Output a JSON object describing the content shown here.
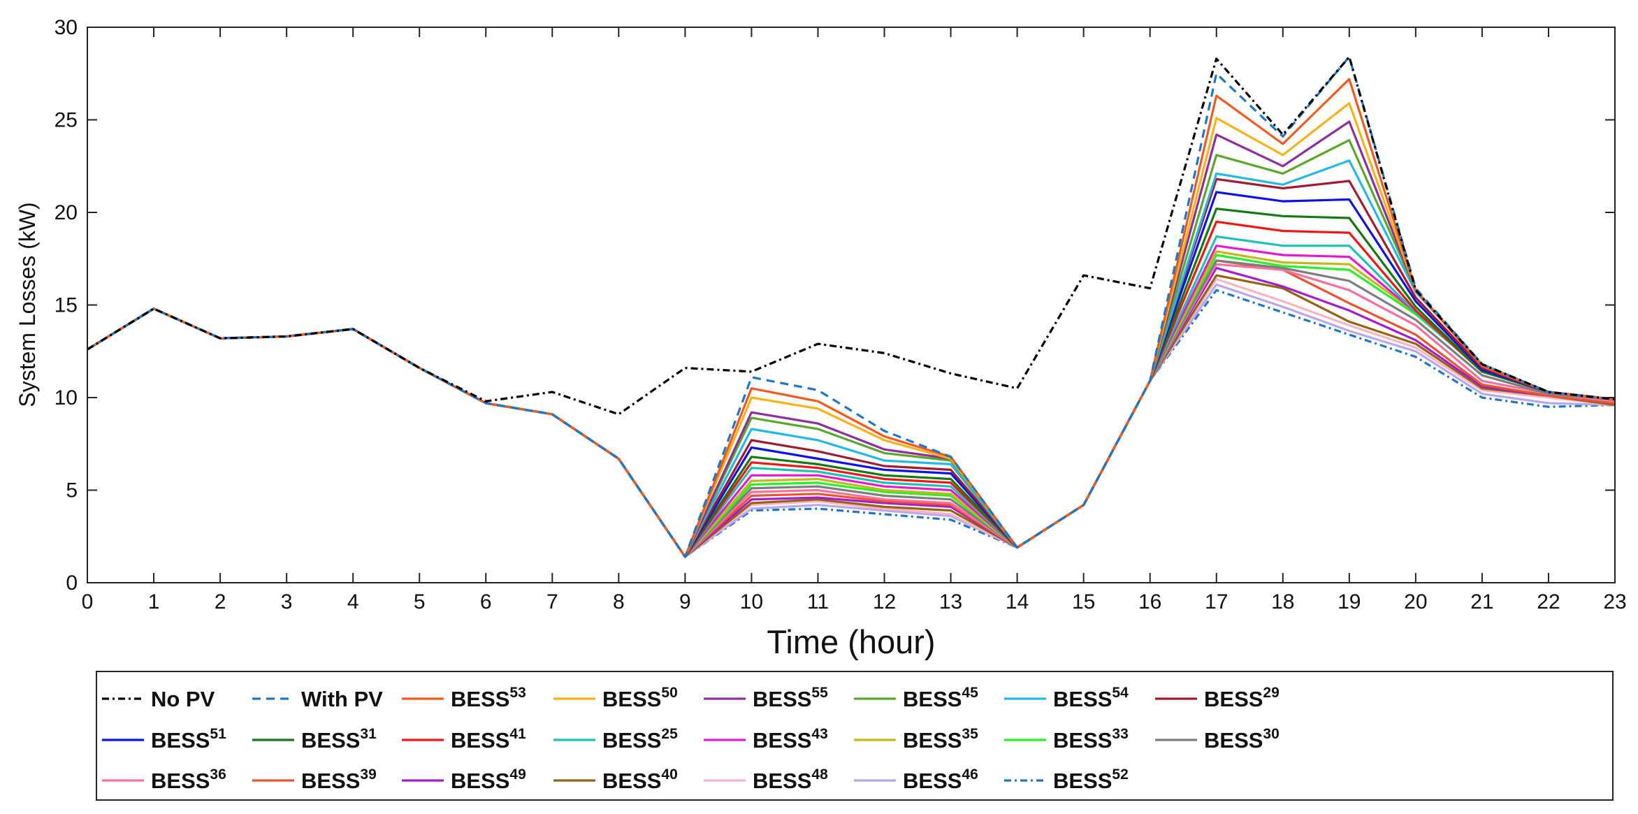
{
  "chart_data": {
    "type": "line",
    "xlabel": "Time (hour)",
    "ylabel": "System Losses (kW)",
    "xlim": [
      0,
      23
    ],
    "ylim": [
      0,
      30
    ],
    "x_ticks": [
      0,
      1,
      2,
      3,
      4,
      5,
      6,
      7,
      8,
      9,
      10,
      11,
      12,
      13,
      14,
      15,
      16,
      17,
      18,
      19,
      20,
      21,
      22,
      23
    ],
    "y_ticks": [
      0,
      5,
      10,
      15,
      20,
      25,
      30
    ],
    "grid": false,
    "legend_position": "bottom",
    "x": [
      0,
      1,
      2,
      3,
      4,
      5,
      6,
      7,
      8,
      9,
      10,
      11,
      12,
      13,
      14,
      15,
      16,
      17,
      18,
      19,
      20,
      21,
      22,
      23
    ],
    "series": [
      {
        "name": "No PV",
        "label_base": "No PV",
        "label_sup": "",
        "color": "#000000",
        "style": "dashdot",
        "values": [
          12.6,
          14.8,
          13.2,
          13.3,
          13.7,
          11.6,
          9.8,
          10.3,
          9.1,
          11.6,
          11.4,
          12.9,
          12.4,
          11.3,
          10.5,
          16.6,
          15.9,
          28.3,
          24.2,
          28.4,
          15.8,
          11.8,
          10.3,
          9.9
        ]
      },
      {
        "name": "With PV",
        "label_base": "With PV",
        "label_sup": "",
        "color": "#1f77c8",
        "style": "dashed",
        "values": [
          12.6,
          14.8,
          13.2,
          13.3,
          13.7,
          11.6,
          9.7,
          9.1,
          6.7,
          1.4,
          11.1,
          10.4,
          8.2,
          6.8,
          1.9,
          4.2,
          10.9,
          27.5,
          24.1,
          28.4,
          15.9,
          11.8,
          10.3,
          9.9
        ]
      },
      {
        "name": "BESS53",
        "label_base": "BESS",
        "label_sup": "53",
        "color": "#f05a1e",
        "style": "solid",
        "values": [
          12.6,
          14.8,
          13.2,
          13.3,
          13.7,
          11.6,
          9.7,
          9.1,
          6.7,
          1.4,
          10.5,
          9.8,
          7.9,
          6.8,
          1.9,
          4.2,
          10.9,
          26.3,
          23.7,
          27.2,
          15.8,
          11.7,
          10.3,
          9.9
        ]
      },
      {
        "name": "BESS50",
        "label_base": "BESS",
        "label_sup": "50",
        "color": "#f7b21a",
        "style": "solid",
        "values": [
          12.6,
          14.8,
          13.2,
          13.3,
          13.7,
          11.6,
          9.7,
          9.1,
          6.7,
          1.4,
          10.0,
          9.4,
          7.7,
          6.7,
          1.9,
          4.2,
          10.9,
          25.1,
          23.1,
          25.9,
          15.8,
          11.7,
          10.3,
          9.9
        ]
      },
      {
        "name": "BESS55",
        "label_base": "BESS",
        "label_sup": "55",
        "color": "#8e2e9e",
        "style": "solid",
        "values": [
          12.6,
          14.8,
          13.2,
          13.3,
          13.7,
          11.6,
          9.7,
          9.1,
          6.7,
          1.4,
          9.2,
          8.6,
          7.2,
          6.7,
          1.9,
          4.2,
          10.9,
          24.2,
          22.5,
          24.9,
          15.8,
          11.7,
          10.3,
          9.9
        ]
      },
      {
        "name": "BESS45",
        "label_base": "BESS",
        "label_sup": "45",
        "color": "#5aa82a",
        "style": "solid",
        "values": [
          12.6,
          14.8,
          13.2,
          13.3,
          13.7,
          11.6,
          9.7,
          9.1,
          6.7,
          1.4,
          8.9,
          8.3,
          7.0,
          6.6,
          1.9,
          4.2,
          10.9,
          23.1,
          22.1,
          23.9,
          15.8,
          11.7,
          10.3,
          9.9
        ]
      },
      {
        "name": "BESS54",
        "label_base": "BESS",
        "label_sup": "54",
        "color": "#22b8ea",
        "style": "solid",
        "values": [
          12.6,
          14.8,
          13.2,
          13.3,
          13.7,
          11.6,
          9.7,
          9.1,
          6.7,
          1.4,
          8.3,
          7.7,
          6.6,
          6.4,
          1.9,
          4.2,
          10.9,
          22.1,
          21.5,
          22.8,
          15.7,
          11.8,
          10.3,
          9.9
        ]
      },
      {
        "name": "BESS29",
        "label_base": "BESS",
        "label_sup": "29",
        "color": "#a31a2e",
        "style": "solid",
        "values": [
          12.6,
          14.8,
          13.2,
          13.3,
          13.7,
          11.6,
          9.7,
          9.1,
          6.7,
          1.4,
          7.7,
          7.1,
          6.3,
          6.1,
          1.9,
          4.2,
          10.9,
          21.8,
          21.3,
          21.7,
          15.4,
          11.6,
          10.3,
          9.9
        ]
      },
      {
        "name": "BESS51",
        "label_base": "BESS",
        "label_sup": "51",
        "color": "#0a14e6",
        "style": "solid",
        "values": [
          12.6,
          14.8,
          13.2,
          13.3,
          13.7,
          11.6,
          9.7,
          9.1,
          6.7,
          1.4,
          7.3,
          6.7,
          6.1,
          5.9,
          1.9,
          4.2,
          10.9,
          21.1,
          20.6,
          20.7,
          15.2,
          11.5,
          10.3,
          9.9
        ]
      },
      {
        "name": "BESS31",
        "label_base": "BESS",
        "label_sup": "31",
        "color": "#137a13",
        "style": "solid",
        "values": [
          12.6,
          14.8,
          13.2,
          13.3,
          13.7,
          11.6,
          9.7,
          9.1,
          6.7,
          1.4,
          6.8,
          6.4,
          5.8,
          5.6,
          1.9,
          4.2,
          10.9,
          20.2,
          19.8,
          19.7,
          14.9,
          11.4,
          10.3,
          9.9
        ]
      },
      {
        "name": "BESS41",
        "label_base": "BESS",
        "label_sup": "41",
        "color": "#f01616",
        "style": "solid",
        "values": [
          12.6,
          14.8,
          13.2,
          13.3,
          13.7,
          11.6,
          9.7,
          9.1,
          6.7,
          1.4,
          6.5,
          6.2,
          5.6,
          5.4,
          1.9,
          4.2,
          10.9,
          19.5,
          19.0,
          18.9,
          14.7,
          11.4,
          10.3,
          9.9
        ]
      },
      {
        "name": "BESS25",
        "label_base": "BESS",
        "label_sup": "25",
        "color": "#1ec2b4",
        "style": "solid",
        "values": [
          12.6,
          14.8,
          13.2,
          13.3,
          13.7,
          11.6,
          9.7,
          9.1,
          6.7,
          1.4,
          6.2,
          6.0,
          5.4,
          5.2,
          1.9,
          4.2,
          10.9,
          18.7,
          18.2,
          18.2,
          14.6,
          11.4,
          10.3,
          9.9
        ]
      },
      {
        "name": "BESS43",
        "label_base": "BESS",
        "label_sup": "43",
        "color": "#e619d2",
        "style": "solid",
        "values": [
          12.6,
          14.8,
          13.2,
          13.3,
          13.7,
          11.6,
          9.7,
          9.1,
          6.7,
          1.4,
          5.8,
          5.8,
          5.2,
          5.0,
          1.9,
          4.2,
          10.9,
          18.2,
          17.7,
          17.6,
          14.6,
          11.5,
          10.3,
          9.9
        ]
      },
      {
        "name": "BESS35",
        "label_base": "BESS",
        "label_sup": "35",
        "color": "#c2b81a",
        "style": "solid",
        "values": [
          12.6,
          14.8,
          13.2,
          13.3,
          13.7,
          11.6,
          9.7,
          9.1,
          6.7,
          1.4,
          5.5,
          5.6,
          5.0,
          4.8,
          1.9,
          4.2,
          10.9,
          17.9,
          17.3,
          17.2,
          14.6,
          11.5,
          10.3,
          9.9
        ]
      },
      {
        "name": "BESS33",
        "label_base": "BESS",
        "label_sup": "33",
        "color": "#28f028",
        "style": "solid",
        "values": [
          12.6,
          14.8,
          13.2,
          13.3,
          13.7,
          11.6,
          9.7,
          9.1,
          6.7,
          1.4,
          5.3,
          5.4,
          4.9,
          4.7,
          1.9,
          4.2,
          10.9,
          17.7,
          17.1,
          16.9,
          14.5,
          11.5,
          10.3,
          9.9
        ]
      },
      {
        "name": "BESS30",
        "label_base": "BESS",
        "label_sup": "30",
        "color": "#7d7d7d",
        "style": "solid",
        "values": [
          12.6,
          14.8,
          13.2,
          13.3,
          13.7,
          11.6,
          9.7,
          9.1,
          6.7,
          1.4,
          5.1,
          5.2,
          4.7,
          4.5,
          1.9,
          4.2,
          10.9,
          17.4,
          17.0,
          16.3,
          14.2,
          11.2,
          10.2,
          9.9
        ]
      },
      {
        "name": "BESS36",
        "label_base": "BESS",
        "label_sup": "36",
        "color": "#f5709c",
        "style": "solid",
        "values": [
          12.6,
          14.8,
          13.2,
          13.3,
          13.7,
          11.6,
          9.7,
          9.1,
          6.7,
          1.4,
          4.9,
          5.0,
          4.5,
          4.3,
          1.9,
          4.2,
          10.9,
          17.2,
          16.9,
          15.8,
          13.9,
          10.9,
          10.2,
          9.8
        ]
      },
      {
        "name": "BESS39",
        "label_base": "BESS",
        "label_sup": "39",
        "color": "#e8542e",
        "style": "solid",
        "values": [
          12.6,
          14.8,
          13.2,
          13.3,
          13.7,
          11.6,
          9.7,
          9.1,
          6.7,
          1.4,
          4.7,
          4.8,
          4.4,
          4.2,
          1.9,
          4.2,
          10.9,
          17.4,
          16.9,
          15.1,
          13.4,
          10.7,
          10.1,
          9.7
        ]
      },
      {
        "name": "BESS49",
        "label_base": "BESS",
        "label_sup": "49",
        "color": "#a61ad0",
        "style": "solid",
        "values": [
          12.6,
          14.8,
          13.2,
          13.3,
          13.7,
          11.6,
          9.7,
          9.1,
          6.7,
          1.4,
          4.5,
          4.6,
          4.3,
          4.1,
          1.9,
          4.2,
          10.9,
          17.0,
          16.0,
          14.7,
          13.1,
          10.6,
          10.1,
          9.7
        ]
      },
      {
        "name": "BESS40",
        "label_base": "BESS",
        "label_sup": "40",
        "color": "#946410",
        "style": "solid",
        "values": [
          12.6,
          14.8,
          13.2,
          13.3,
          13.7,
          11.6,
          9.7,
          9.1,
          6.7,
          1.4,
          4.3,
          4.5,
          4.1,
          3.9,
          1.9,
          4.2,
          10.9,
          16.6,
          15.9,
          14.1,
          12.9,
          10.5,
          10.1,
          9.6
        ]
      },
      {
        "name": "BESS48",
        "label_base": "BESS",
        "label_sup": "48",
        "color": "#f9b4c4",
        "style": "solid",
        "values": [
          12.6,
          14.8,
          13.2,
          13.3,
          13.7,
          11.6,
          9.7,
          9.1,
          6.7,
          1.4,
          4.2,
          4.4,
          4.0,
          3.7,
          1.9,
          4.2,
          10.9,
          16.4,
          15.2,
          13.9,
          12.7,
          10.4,
          10.0,
          9.6
        ]
      },
      {
        "name": "BESS46",
        "label_base": "BESS",
        "label_sup": "46",
        "color": "#b8a6ee",
        "style": "solid",
        "values": [
          12.6,
          14.8,
          13.2,
          13.3,
          13.7,
          11.6,
          9.7,
          9.1,
          6.7,
          1.4,
          4.0,
          4.2,
          3.9,
          3.6,
          1.9,
          4.2,
          10.9,
          16.1,
          14.9,
          13.6,
          12.5,
          10.2,
          9.7,
          9.6
        ]
      },
      {
        "name": "BESS52",
        "label_base": "BESS",
        "label_sup": "52",
        "color": "#1f77c8",
        "style": "dashdot",
        "values": [
          12.6,
          14.8,
          13.2,
          13.3,
          13.7,
          11.6,
          9.7,
          9.1,
          6.7,
          1.4,
          3.9,
          4.0,
          3.7,
          3.4,
          1.9,
          4.2,
          10.9,
          15.8,
          14.6,
          13.4,
          12.2,
          10.0,
          9.5,
          9.6
        ]
      }
    ]
  }
}
